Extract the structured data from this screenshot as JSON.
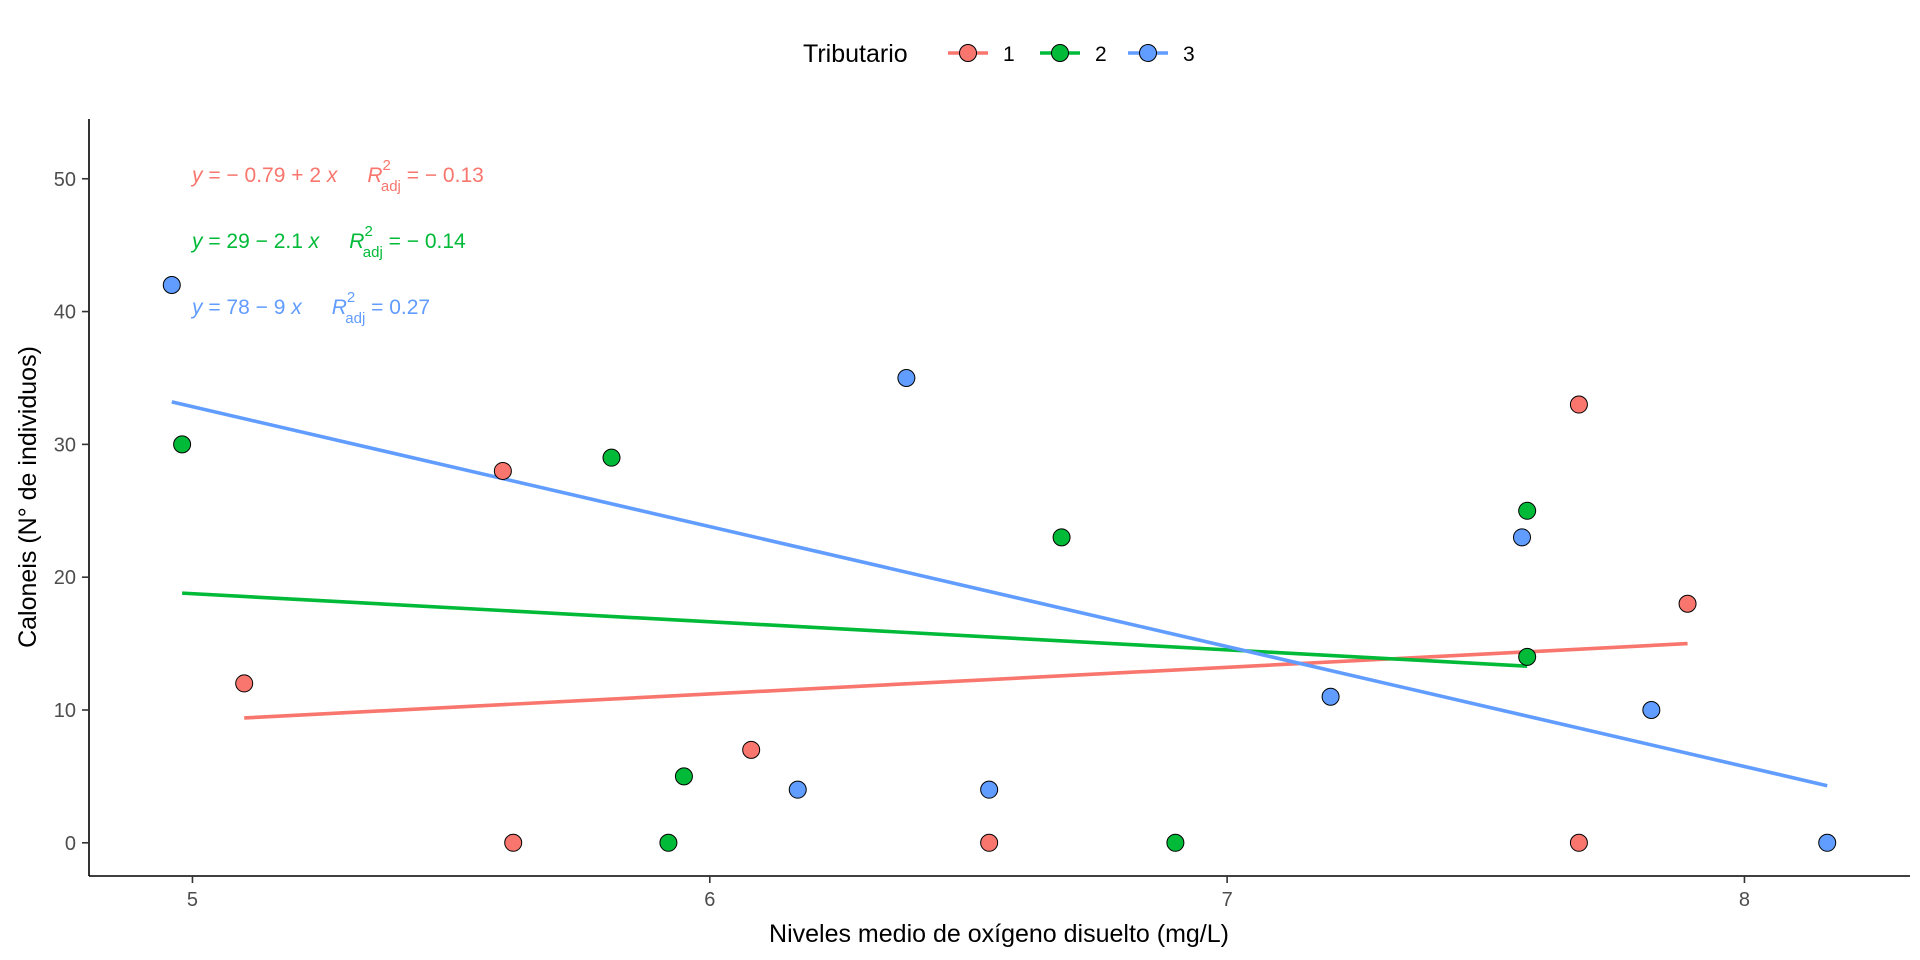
{
  "chart_data": {
    "type": "scatter",
    "xlabel": "Niveles medio de oxígeno disuelto (mg/L)",
    "ylabel": "Caloneis (N° de individuos)",
    "xlim": [
      4.8,
      8.32
    ],
    "ylim": [
      -2.5,
      54.5
    ],
    "x_ticks": [
      5,
      6,
      7,
      8
    ],
    "y_ticks": [
      0,
      10,
      20,
      30,
      40,
      50
    ],
    "grid": false,
    "legend": {
      "title": "Tributario",
      "placement": "top",
      "entries": [
        "1",
        "2",
        "3"
      ]
    },
    "series": [
      {
        "name": "1",
        "color": "#F8766D",
        "points": [
          [
            5.1,
            12
          ],
          [
            5.6,
            28
          ],
          [
            5.62,
            0
          ],
          [
            6.08,
            7
          ],
          [
            6.54,
            0
          ],
          [
            7.68,
            33
          ],
          [
            7.68,
            0
          ],
          [
            7.89,
            18
          ]
        ],
        "fit": {
          "x": [
            5.1,
            7.89
          ],
          "y": [
            9.4,
            15.0
          ]
        },
        "equation": {
          "lhs": "y",
          "rhs": " = − 0.79 + 2 ",
          "xvar": "x",
          "r_label": "R",
          "r_sup": "2",
          "r_sub": "adj",
          "r_value": " = − 0.13"
        }
      },
      {
        "name": "2",
        "color": "#00BA38",
        "points": [
          [
            4.98,
            30
          ],
          [
            5.81,
            29
          ],
          [
            5.92,
            0
          ],
          [
            5.95,
            5
          ],
          [
            6.68,
            23
          ],
          [
            6.9,
            0
          ],
          [
            7.58,
            25
          ],
          [
            7.58,
            14
          ]
        ],
        "fit": {
          "x": [
            4.98,
            7.58
          ],
          "y": [
            18.8,
            13.3
          ]
        },
        "equation": {
          "lhs": "y",
          "rhs": " = 29 − 2.1 ",
          "xvar": "x",
          "r_label": "R",
          "r_sup": "2",
          "r_sub": "adj",
          "r_value": " = − 0.14"
        }
      },
      {
        "name": "3",
        "color": "#619CFF",
        "points": [
          [
            4.96,
            42
          ],
          [
            6.17,
            4
          ],
          [
            6.38,
            35
          ],
          [
            6.54,
            4
          ],
          [
            7.2,
            11
          ],
          [
            7.57,
            23
          ],
          [
            7.82,
            10
          ],
          [
            8.16,
            0
          ]
        ],
        "fit": {
          "x": [
            4.96,
            8.16
          ],
          "y": [
            33.2,
            4.3
          ]
        },
        "equation": {
          "lhs": "y",
          "rhs": " = 78 − 9 ",
          "xvar": "x",
          "r_label": "R",
          "r_sup": "2",
          "r_sub": "adj",
          "r_value": " = 0.27"
        }
      }
    ]
  }
}
